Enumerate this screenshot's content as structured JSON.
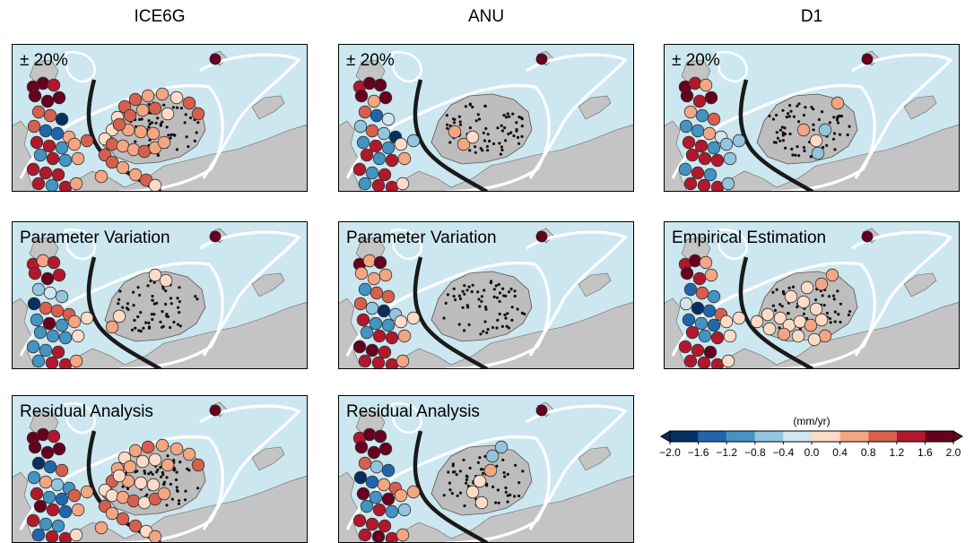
{
  "columns": [
    "ICE6G",
    "ANU",
    "D1"
  ],
  "panels": [
    {
      "id": "p-ice6g-20",
      "col": 0,
      "row": 0,
      "label": "± 20%",
      "mode": "A"
    },
    {
      "id": "p-anu-20",
      "col": 1,
      "row": 0,
      "label": "± 20%",
      "mode": "B"
    },
    {
      "id": "p-d1-20",
      "col": 2,
      "row": 0,
      "label": "± 20%",
      "mode": "C"
    },
    {
      "id": "p-ice6g-pv",
      "col": 0,
      "row": 1,
      "label": "Parameter Variation",
      "mode": "D"
    },
    {
      "id": "p-anu-pv",
      "col": 1,
      "row": 1,
      "label": "Parameter Variation",
      "mode": "E"
    },
    {
      "id": "p-d1-ee",
      "col": 2,
      "row": 1,
      "label": "Empirical Estimation",
      "mode": "F"
    },
    {
      "id": "p-ice6g-ra",
      "col": 0,
      "row": 2,
      "label": "Residual Analysis",
      "mode": "A"
    },
    {
      "id": "p-anu-ra",
      "col": 1,
      "row": 2,
      "label": "Residual Analysis",
      "mode": "G"
    }
  ],
  "colorbar": {
    "title": "(mm/yr)",
    "ticks": [
      "−2.0",
      "−1.6",
      "−1.2",
      "−0.8",
      "−0.4",
      "0.0",
      "0.4",
      "0.8",
      "1.2",
      "1.6",
      "2.0"
    ],
    "colors": [
      "#053061",
      "#2166ac",
      "#4393c3",
      "#92c5de",
      "#d1e5f0",
      "#fddbc7",
      "#f4a582",
      "#d6604d",
      "#b2182b",
      "#67001f"
    ],
    "extend_low_color": "#053061",
    "extend_high_color": "#67001f"
  }
}
